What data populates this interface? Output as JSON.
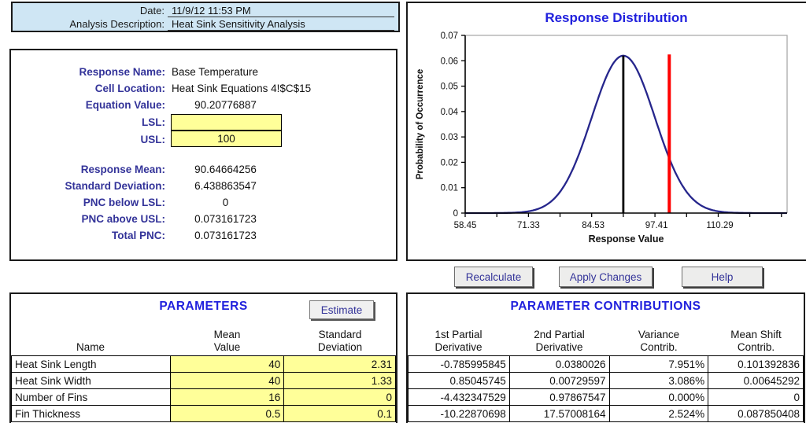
{
  "header": {
    "date_label": "Date:",
    "date_value": "11/9/12 11:53 PM",
    "description_label": "Analysis Description:",
    "description_value": "Heat Sink Sensitivity Analysis"
  },
  "response": {
    "fields": [
      {
        "label": "Response Name:",
        "value": "Base Temperature",
        "align": "left"
      },
      {
        "label": "Cell Location:",
        "value": "Heat Sink Equations 4!$C$15",
        "align": "left"
      },
      {
        "label": "Equation Value:",
        "value": "90.20776887",
        "align": "center"
      }
    ],
    "lsl_label": "LSL:",
    "lsl_value": "",
    "usl_label": "USL:",
    "usl_value": "100",
    "stats": [
      {
        "label": "Response Mean:",
        "value": "90.64664256"
      },
      {
        "label": "Standard Deviation:",
        "value": "6.438863547"
      },
      {
        "label": "PNC below LSL:",
        "value": "0"
      },
      {
        "label": "PNC above USL:",
        "value": "0.073161723"
      },
      {
        "label": "Total PNC:",
        "value": "0.073161723"
      }
    ]
  },
  "chart_data": {
    "type": "line",
    "title": "Response Distribution",
    "xlabel": "Response Value",
    "ylabel": "Probability of Occurrence",
    "xlim": [
      58.45,
      124.0
    ],
    "ylim": [
      0,
      0.07
    ],
    "x_ticks": [
      58.45,
      71.33,
      84.53,
      97.41,
      110.29
    ],
    "x_tick_labels": [
      "58.45",
      "71.33",
      "84.53",
      "97.41",
      "110.29"
    ],
    "y_ticks": [
      0,
      0.01,
      0.02,
      0.03,
      0.04,
      0.05,
      0.06,
      0.07
    ],
    "y_tick_labels": [
      "0",
      "0.01",
      "0.02",
      "0.03",
      "0.04",
      "0.05",
      "0.06",
      "0.07"
    ],
    "grid": false,
    "legend": false,
    "curve": {
      "distribution": "normal",
      "mean": 90.64664256,
      "std": 6.438863547,
      "peak": 0.062,
      "color": "#26268C"
    },
    "mean_line": {
      "x": 90.64664256,
      "top": 0.062,
      "color": "#000000"
    },
    "usl_line": {
      "x": 100,
      "top": 0.0625,
      "color": "#FF0000"
    }
  },
  "buttons": {
    "recalculate": "Recalculate",
    "apply_changes": "Apply Changes",
    "help": "Help",
    "estimate": "Estimate"
  },
  "parameters": {
    "title": "PARAMETERS",
    "columns": [
      [
        "",
        "Name"
      ],
      [
        "Mean",
        "Value"
      ],
      [
        "Standard",
        "Deviation"
      ]
    ],
    "rows": [
      {
        "name": "Heat Sink Length",
        "mean": "40",
        "std": "2.31"
      },
      {
        "name": "Heat Sink Width",
        "mean": "40",
        "std": "1.33"
      },
      {
        "name": "Number of Fins",
        "mean": "16",
        "std": "0"
      },
      {
        "name": "Fin Thickness",
        "mean": "0.5",
        "std": "0.1"
      }
    ]
  },
  "contributions": {
    "title": "PARAMETER CONTRIBUTIONS",
    "columns": [
      [
        "1st Partial",
        "Derivative"
      ],
      [
        "2nd Partial",
        "Derivative"
      ],
      [
        "Variance",
        "Contrib."
      ],
      [
        "Mean Shift",
        "Contrib."
      ]
    ],
    "rows": [
      [
        "-0.785995845",
        "0.0380026",
        "7.951%",
        "0.101392836"
      ],
      [
        "0.85045745",
        "0.00729597",
        "3.086%",
        "0.00645292"
      ],
      [
        "-4.432347529",
        "0.97867547",
        "0.000%",
        "0"
      ],
      [
        "-10.22870698",
        "17.57008164",
        "2.524%",
        "0.087850408"
      ]
    ]
  },
  "colors": {
    "label_navy": "#333399",
    "title_blue": "#2121DD",
    "header_bg": "#CFE6F4",
    "input_yellow": "#FFFF99",
    "curve_navy": "#26268C",
    "mean_line_black": "#000000",
    "usl_red": "#FF0000"
  }
}
